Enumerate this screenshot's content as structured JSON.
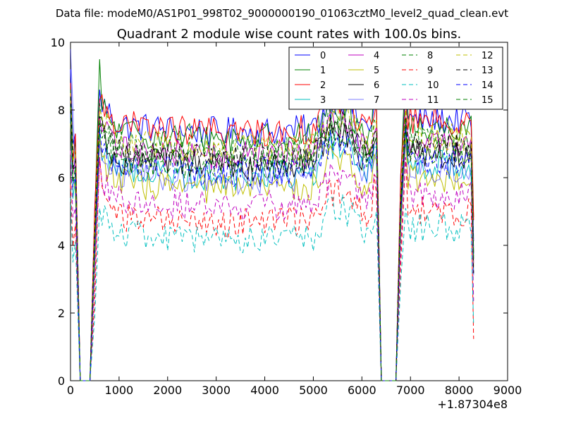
{
  "figure": {
    "suptitle": "Data file: modeM0/AS1P01_998T02_9000000190_01063cztM0_level2_quad_clean.evt"
  },
  "chart_data": {
    "type": "line",
    "title": "Quadrant 2 module wise count rates with 100.0s bins.",
    "xlabel": "",
    "ylabel": "",
    "x_offset_label": "+1.87304e8",
    "xlim": [
      0,
      9000
    ],
    "ylim": [
      0,
      10
    ],
    "xticks": [
      "0",
      "1000",
      "2000",
      "3000",
      "4000",
      "5000",
      "6000",
      "7000",
      "8000",
      "9000"
    ],
    "yticks": [
      "0",
      "2",
      "4",
      "6",
      "8",
      "10"
    ],
    "grid": false,
    "legend": {
      "placement": "top-right",
      "columns": 4
    },
    "segments": [
      {
        "x_start": 0,
        "x_end": 200,
        "note": "initial spike then drop to zero"
      },
      {
        "x_start": 400,
        "x_end": 6300
      },
      {
        "x_start": 6400,
        "x_end": 6700,
        "note": "zero gap"
      },
      {
        "x_start": 6700,
        "x_end": 8300
      }
    ],
    "series": [
      {
        "name": "0",
        "color": "#0000ff",
        "dash": "solid",
        "level": 7.6,
        "peak": 9.2,
        "jump": 8.6
      },
      {
        "name": "1",
        "color": "#008000",
        "dash": "solid",
        "level": 7.4,
        "peak": 8.8,
        "jump": 9.5
      },
      {
        "name": "2",
        "color": "#ff0000",
        "dash": "solid",
        "level": 7.6,
        "peak": 8.8,
        "jump": 8.3
      },
      {
        "name": "3",
        "color": "#00bfbf",
        "dash": "solid",
        "level": 6.3,
        "peak": 7.8,
        "jump": 7.4
      },
      {
        "name": "4",
        "color": "#bf00bf",
        "dash": "solid",
        "level": 6.9,
        "peak": 8.6,
        "jump": 7.8
      },
      {
        "name": "5",
        "color": "#bfbf00",
        "dash": "solid",
        "level": 5.9,
        "peak": 7.6,
        "jump": 7.2
      },
      {
        "name": "6",
        "color": "#000000",
        "dash": "solid",
        "level": 6.6,
        "peak": 7.9,
        "jump": 7.5
      },
      {
        "name": "7",
        "color": "#0000ff",
        "dash": "solid",
        "level": 6.2,
        "peak": 9.8,
        "jump": 7.0,
        "alpha": 0.5
      },
      {
        "name": "8",
        "color": "#008000",
        "dash": "dashed",
        "level": 7.0,
        "peak": 8.6,
        "jump": 8.2
      },
      {
        "name": "9",
        "color": "#ff0000",
        "dash": "dashed",
        "level": 4.9,
        "peak": 5.8,
        "jump": 6.6
      },
      {
        "name": "10",
        "color": "#00bfbf",
        "dash": "dashed",
        "level": 4.4,
        "peak": 5.4,
        "jump": 5.1
      },
      {
        "name": "11",
        "color": "#bf00bf",
        "dash": "dashed",
        "level": 5.4,
        "peak": 6.8,
        "jump": 6.6
      },
      {
        "name": "12",
        "color": "#bfbf00",
        "dash": "dashed",
        "level": 7.1,
        "peak": 8.5,
        "jump": 8.0
      },
      {
        "name": "13",
        "color": "#000000",
        "dash": "dashed",
        "level": 6.8,
        "peak": 8.4,
        "jump": 7.8
      },
      {
        "name": "14",
        "color": "#0000ff",
        "dash": "dashed",
        "level": 6.4,
        "peak": 7.9,
        "jump": 7.5
      },
      {
        "name": "15",
        "color": "#008000",
        "dash": "dashed",
        "level": 6.6,
        "peak": 8.1,
        "jump": 7.7
      }
    ]
  }
}
